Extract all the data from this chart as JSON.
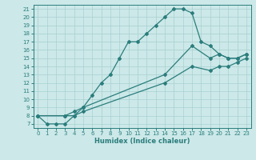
{
  "line1_x": [
    0,
    1,
    2,
    3,
    4,
    5,
    6,
    7,
    8,
    9,
    10,
    11,
    12,
    13,
    14,
    15,
    16,
    17,
    18,
    19,
    20,
    21,
    22,
    23
  ],
  "line1_y": [
    8,
    7,
    7,
    7,
    8,
    9,
    10.5,
    12,
    13,
    15,
    17,
    17,
    18,
    19,
    20,
    21,
    21,
    20.5,
    17,
    16.5,
    15.5,
    15,
    15,
    15.5
  ],
  "line2_x": [
    0,
    3,
    4,
    5,
    14,
    17,
    19,
    20,
    21,
    22,
    23
  ],
  "line2_y": [
    8,
    8,
    8.5,
    9,
    13,
    16.5,
    15,
    15.5,
    15,
    15,
    15.5
  ],
  "line3_x": [
    0,
    3,
    4,
    5,
    14,
    17,
    19,
    20,
    21,
    22,
    23
  ],
  "line3_y": [
    8,
    8,
    8,
    8.5,
    12,
    14,
    13.5,
    14,
    14,
    14.5,
    15
  ],
  "color": "#2b7d7d",
  "bg_color": "#cce8e8",
  "grid_color": "#a8d0d0",
  "xlabel": "Humidex (Indice chaleur)",
  "xlim": [
    -0.5,
    23.5
  ],
  "ylim": [
    6.5,
    21.5
  ],
  "xticks": [
    0,
    1,
    2,
    3,
    4,
    5,
    6,
    7,
    8,
    9,
    10,
    11,
    12,
    13,
    14,
    15,
    16,
    17,
    18,
    19,
    20,
    21,
    22,
    23
  ],
  "yticks": [
    7,
    8,
    9,
    10,
    11,
    12,
    13,
    14,
    15,
    16,
    17,
    18,
    19,
    20,
    21
  ],
  "marker": "D",
  "markersize": 2,
  "linewidth": 0.9,
  "xlabel_fontsize": 6,
  "tick_fontsize": 5
}
